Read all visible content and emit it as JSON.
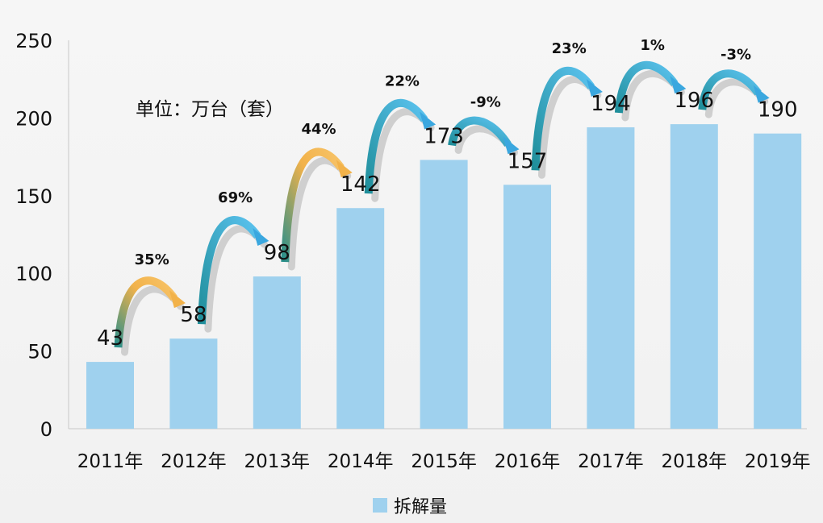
{
  "chart_data": {
    "type": "bar",
    "title": "",
    "unit_note": "单位：万台（套）",
    "categories": [
      "2011年",
      "2012年",
      "2013年",
      "2014年",
      "2015年",
      "2016年",
      "2017年",
      "2018年",
      "2019年"
    ],
    "series": [
      {
        "name": "拆解量",
        "values": [
          43,
          58,
          98,
          142,
          173,
          157,
          194,
          196,
          190
        ]
      }
    ],
    "growth_labels": [
      "35%",
      "69%",
      "44%",
      "22%",
      "-9%",
      "23%",
      "1%",
      "-3%"
    ],
    "growth_arrow_colors": [
      "orange",
      "blue",
      "orange",
      "blue",
      "blue",
      "blue",
      "blue",
      "blue"
    ],
    "ylim": [
      0,
      250
    ],
    "yticks": [
      0,
      50,
      100,
      150,
      200,
      250
    ],
    "xlabel": "",
    "ylabel": "",
    "legend": "bottom",
    "colors": {
      "bar": "#9fd1ee",
      "axis": "#c8c8c8",
      "blue_arrow": "#3aa7df",
      "orange_arrow": "#f2b24a",
      "teal": "#2a8f8a"
    }
  }
}
